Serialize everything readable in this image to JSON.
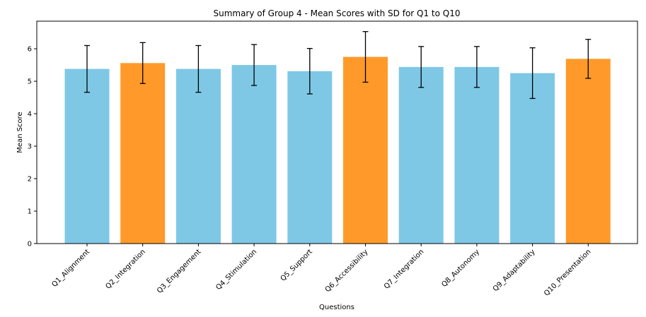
{
  "chart_data": {
    "type": "bar",
    "title": "Summary of Group 4 - Mean Scores with SD for Q1 to Q10",
    "xlabel": "Questions",
    "ylabel": "Mean Score",
    "categories": [
      "Q1_Alignment",
      "Q2_Integration",
      "Q3_Engagement",
      "Q4_Stimulation",
      "Q5_Support",
      "Q6_Accessibility",
      "Q7_Integration",
      "Q8_Autonomy",
      "Q9_Adaptability",
      "Q10_Presentation"
    ],
    "values": [
      5.38,
      5.56,
      5.38,
      5.5,
      5.31,
      5.75,
      5.44,
      5.44,
      5.25,
      5.69
    ],
    "sd": [
      0.72,
      0.63,
      0.72,
      0.63,
      0.7,
      0.78,
      0.63,
      0.63,
      0.78,
      0.6
    ],
    "bar_colors": [
      "#7ec8e6",
      "#ff9a2a",
      "#7ec8e6",
      "#7ec8e6",
      "#7ec8e6",
      "#ff9a2a",
      "#7ec8e6",
      "#7ec8e6",
      "#7ec8e6",
      "#ff9a2a"
    ],
    "ylim": [
      0,
      6.85
    ],
    "yticks": [
      0,
      1,
      2,
      3,
      4,
      5,
      6
    ],
    "grid": false,
    "legend": "none"
  }
}
